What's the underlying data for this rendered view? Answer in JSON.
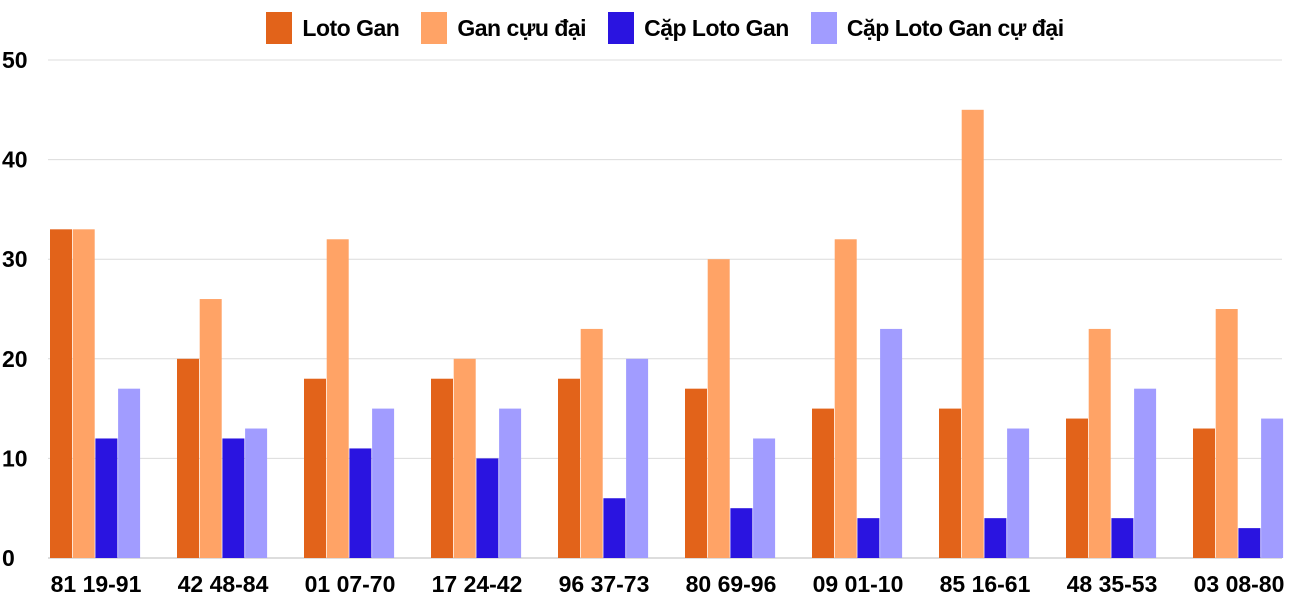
{
  "chart_data": {
    "type": "bar",
    "title": "",
    "xlabel": "",
    "ylabel": "",
    "ylim": [
      0,
      50
    ],
    "yticks": [
      0,
      10,
      20,
      30,
      40,
      50
    ],
    "grid": true,
    "legend_position": "top-center",
    "categories": [
      "81 19-91",
      "42 48-84",
      "01 07-70",
      "17 24-42",
      "96 37-73",
      "80 69-96",
      "09 01-10",
      "85 16-61",
      "48 35-53",
      "03 08-80"
    ],
    "series": [
      {
        "name": "Loto Gan",
        "color": "#e2631a",
        "values": [
          33,
          20,
          18,
          18,
          18,
          17,
          15,
          15,
          14,
          13
        ]
      },
      {
        "name": "Gan cựu đại",
        "color": "#ffa366",
        "values": [
          33,
          26,
          32,
          20,
          23,
          30,
          32,
          45,
          23,
          25
        ]
      },
      {
        "name": "Cặp Loto Gan",
        "color": "#2a14e0",
        "values": [
          12,
          12,
          11,
          10,
          6,
          5,
          4,
          4,
          4,
          3
        ]
      },
      {
        "name": "Cặp Loto Gan cự đại",
        "color": "#a19cff",
        "values": [
          17,
          13,
          15,
          15,
          20,
          12,
          23,
          13,
          17,
          14
        ]
      }
    ]
  }
}
